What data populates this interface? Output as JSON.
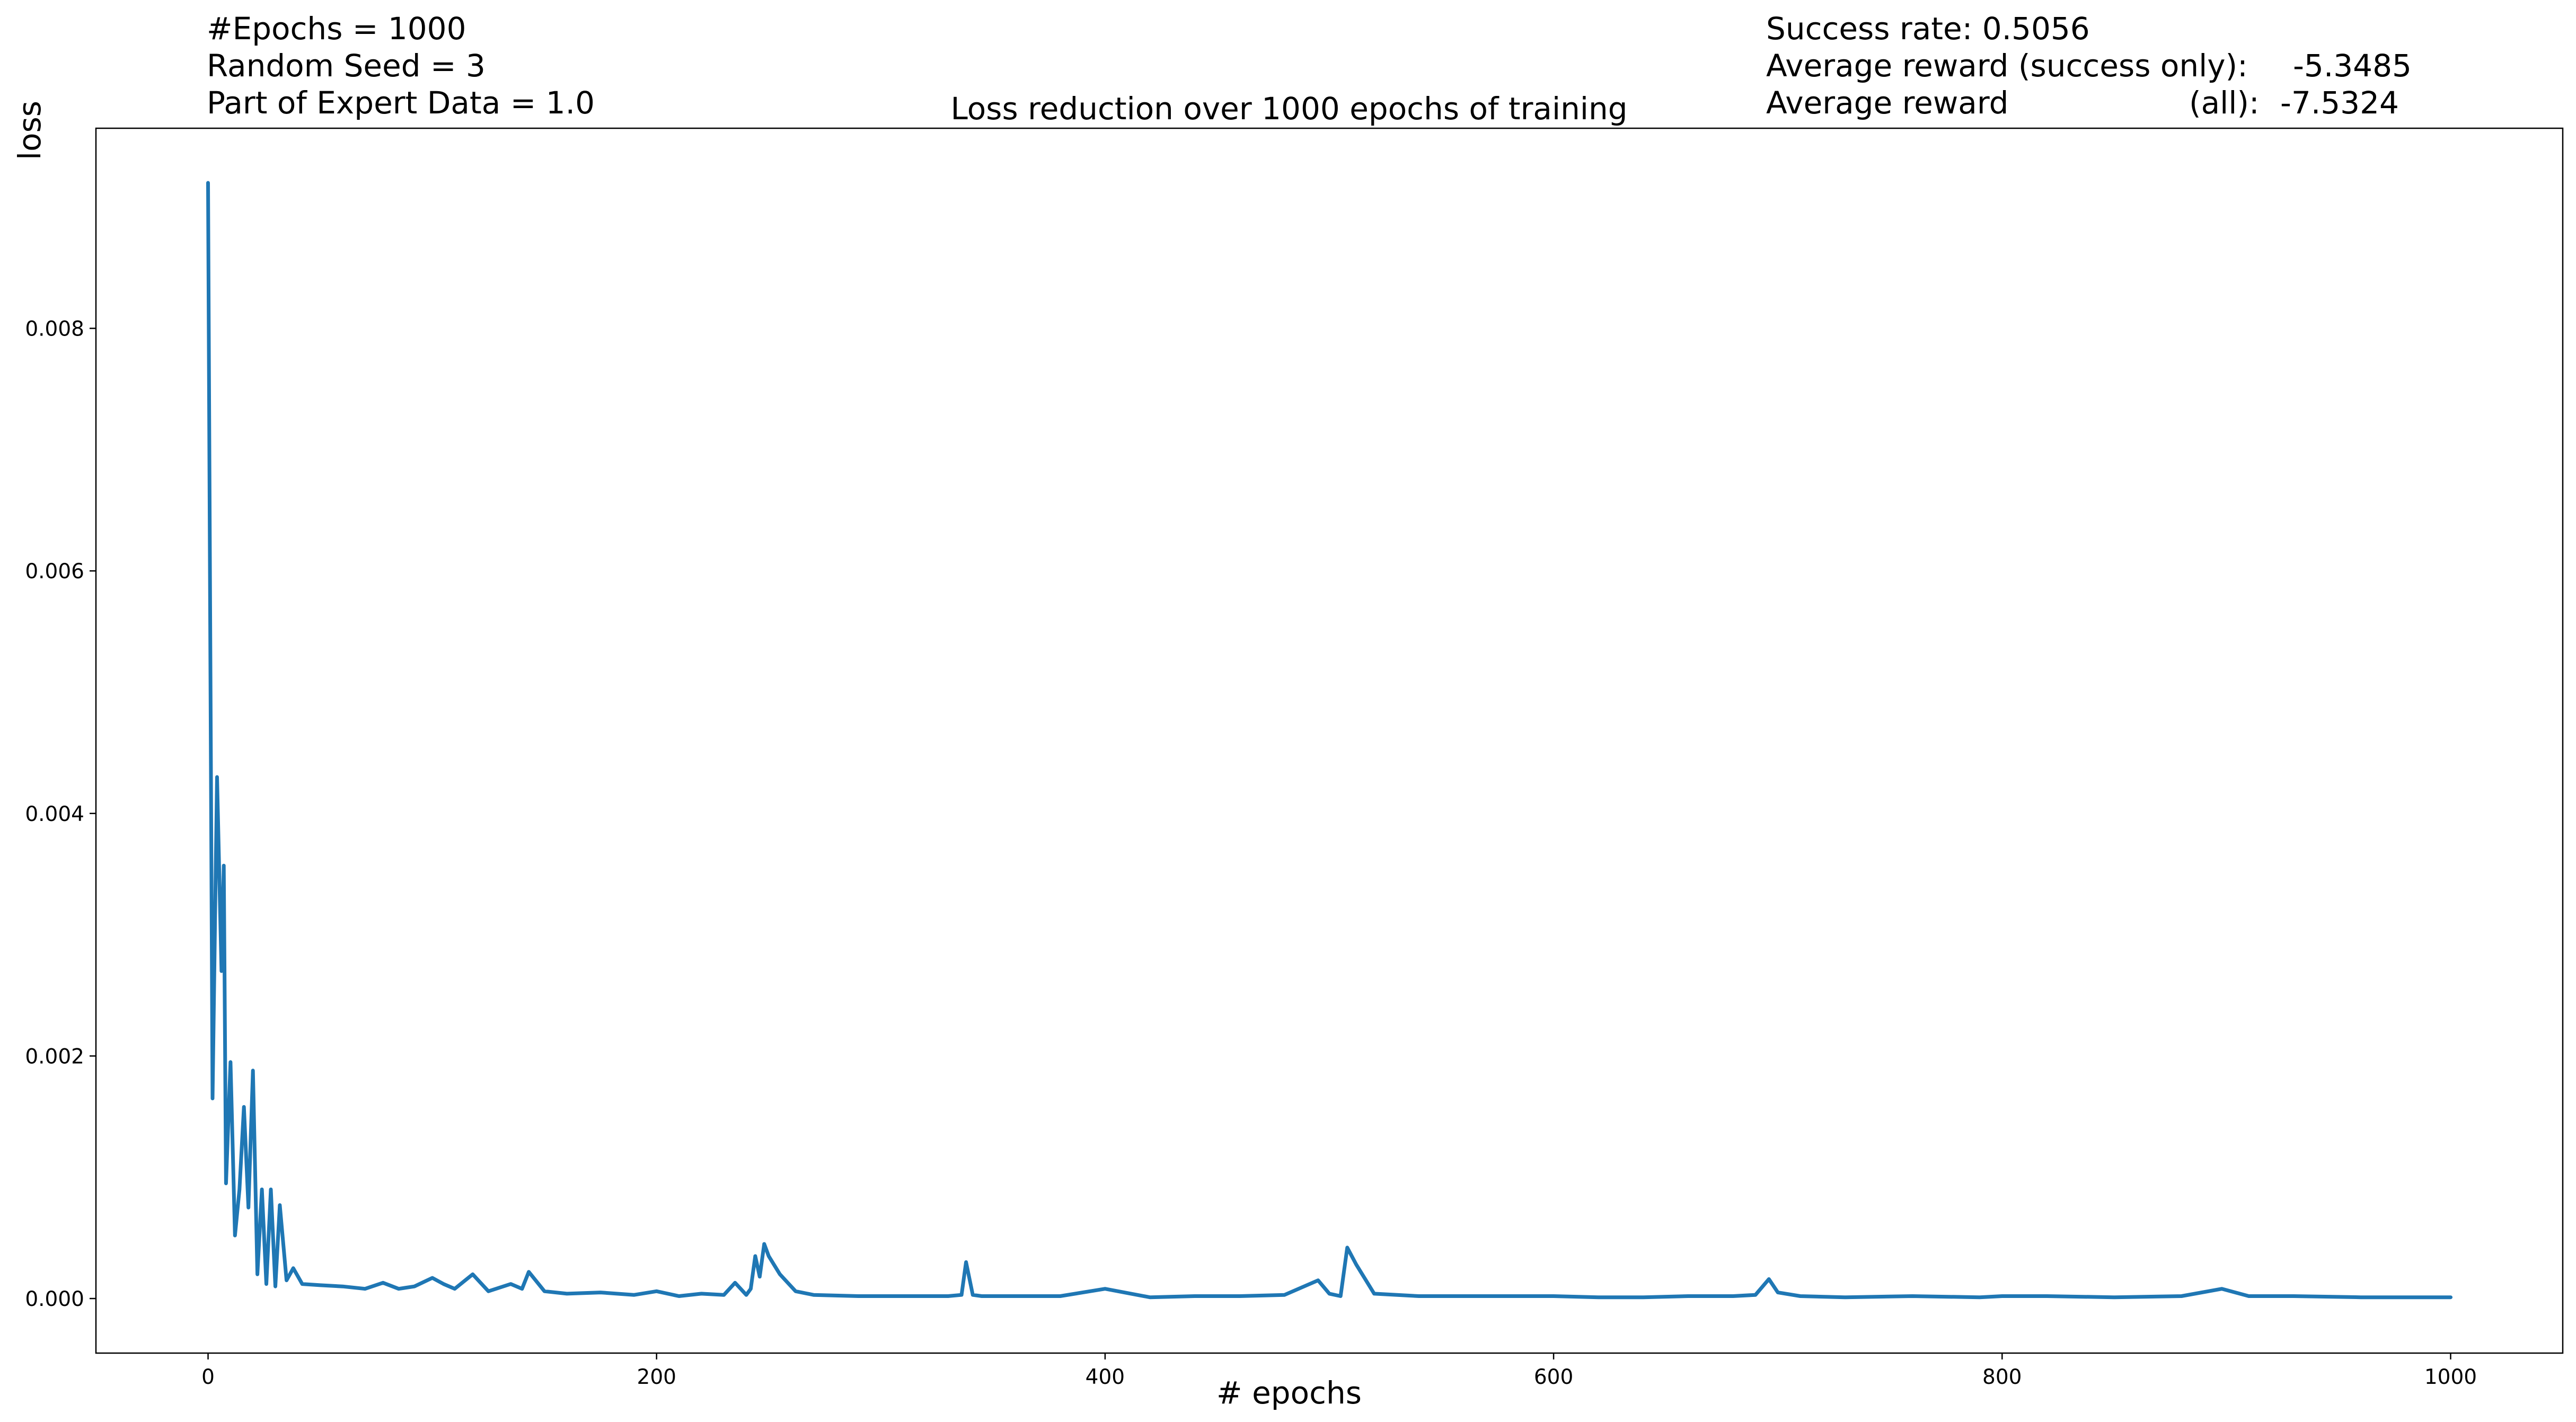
{
  "info_left": {
    "epochs": "#Epochs = 1000",
    "seed": "Random Seed = 3",
    "expert": "Part of Expert Data = 1.0"
  },
  "info_right": {
    "success": "Success rate: 0.5056",
    "avg_success_label": "Average reward (success only):",
    "avg_success_value": "-5.3485",
    "avg_all_label": "Average reward",
    "avg_all_sub": "(all):",
    "avg_all_value": "-7.5324"
  },
  "colors": {
    "line": "#1f77b4",
    "axes": "#000000",
    "background": "#ffffff"
  },
  "chart_data": {
    "type": "line",
    "title": "Loss reduction over 1000 epochs of training",
    "xlabel": "# epochs",
    "ylabel": "loss",
    "xlim": [
      -50,
      1050
    ],
    "ylim": [
      -0.00045,
      0.00965
    ],
    "xticks": [
      0,
      200,
      400,
      600,
      800,
      1000
    ],
    "xtick_labels": [
      "0",
      "200",
      "400",
      "600",
      "800",
      "1000"
    ],
    "yticks": [
      0.0,
      0.002,
      0.004,
      0.006,
      0.008
    ],
    "ytick_labels": [
      "0.000",
      "0.002",
      "0.004",
      "0.006",
      "0.008"
    ],
    "grid": false,
    "series": [
      {
        "name": "loss",
        "x": [
          0,
          2,
          4,
          6,
          7,
          8,
          10,
          12,
          14,
          16,
          18,
          20,
          22,
          24,
          26,
          28,
          30,
          32,
          35,
          38,
          42,
          50,
          60,
          70,
          78,
          85,
          92,
          100,
          105,
          110,
          118,
          125,
          135,
          140,
          143,
          150,
          160,
          175,
          190,
          200,
          210,
          220,
          230,
          235,
          240,
          242,
          244,
          246,
          248,
          250,
          255,
          262,
          270,
          290,
          310,
          330,
          336,
          338,
          341,
          345,
          360,
          380,
          400,
          420,
          440,
          460,
          480,
          495,
          500,
          505,
          508,
          512,
          520,
          540,
          560,
          580,
          600,
          620,
          640,
          660,
          680,
          690,
          696,
          700,
          710,
          730,
          760,
          790,
          800,
          820,
          850,
          880,
          898,
          910,
          930,
          960,
          1000
        ],
        "values": [
          0.0092,
          0.00165,
          0.0043,
          0.0027,
          0.00357,
          0.00095,
          0.00195,
          0.00052,
          0.0009,
          0.00158,
          0.00075,
          0.00188,
          0.0002,
          0.0009,
          0.00012,
          0.0009,
          0.0001,
          0.00077,
          0.00015,
          0.00025,
          0.00012,
          0.00011,
          0.0001,
          8e-05,
          0.00013,
          8e-05,
          0.0001,
          0.00017,
          0.00012,
          8e-05,
          0.0002,
          6e-05,
          0.00012,
          8e-05,
          0.00022,
          6e-05,
          4e-05,
          5e-05,
          3e-05,
          6e-05,
          2e-05,
          4e-05,
          3e-05,
          0.00013,
          3e-05,
          8e-05,
          0.00035,
          0.00018,
          0.00045,
          0.00035,
          0.0002,
          6e-05,
          3e-05,
          2e-05,
          2e-05,
          2e-05,
          3e-05,
          0.0003,
          3e-05,
          2e-05,
          2e-05,
          2e-05,
          8e-05,
          1e-05,
          2e-05,
          2e-05,
          3e-05,
          0.00015,
          4e-05,
          2e-05,
          0.00042,
          0.00028,
          4e-05,
          2e-05,
          2e-05,
          2e-05,
          2e-05,
          1e-05,
          1e-05,
          2e-05,
          2e-05,
          3e-05,
          0.00016,
          5e-05,
          2e-05,
          1e-05,
          2e-05,
          1e-05,
          2e-05,
          2e-05,
          1e-05,
          2e-05,
          8e-05,
          2e-05,
          2e-05,
          1e-05,
          1e-05
        ]
      }
    ]
  }
}
